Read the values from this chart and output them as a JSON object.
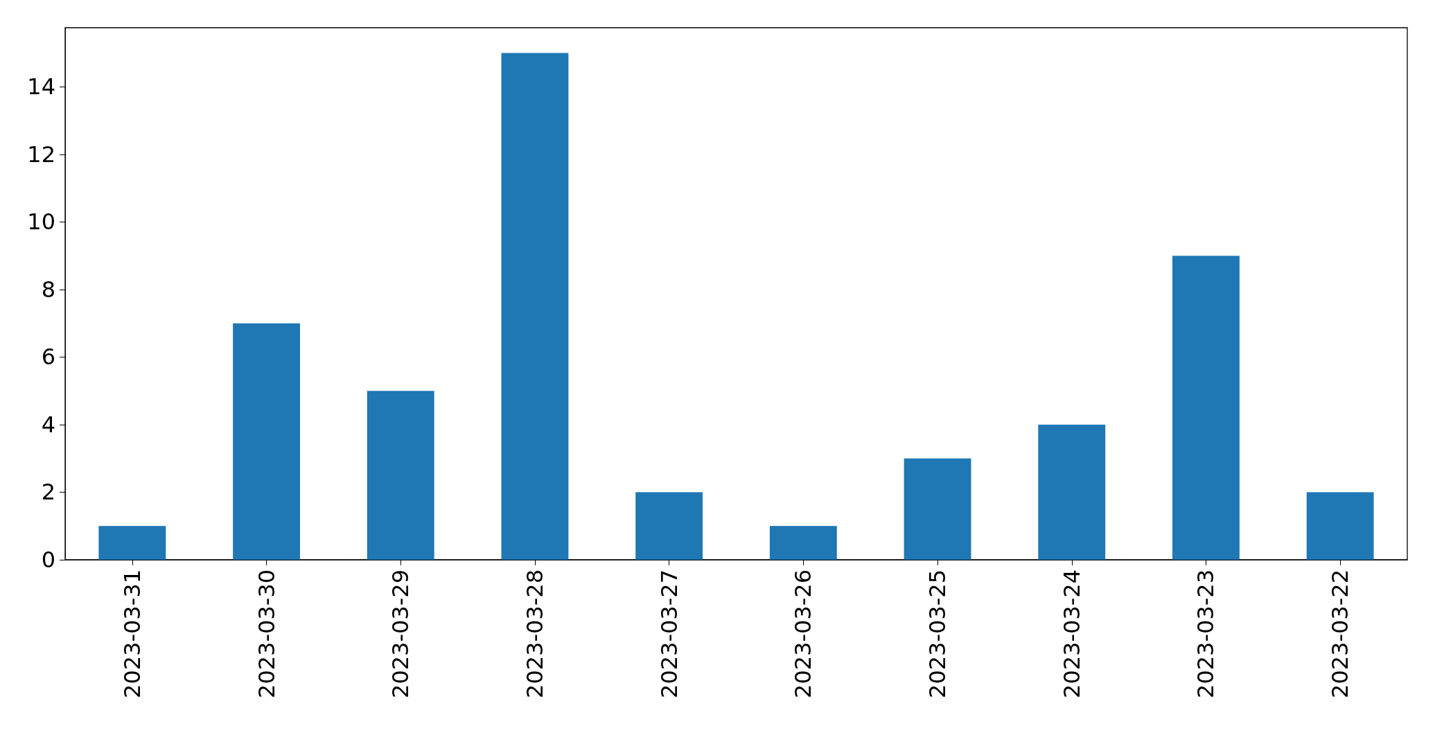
{
  "chart_data": {
    "type": "bar",
    "categories": [
      "2023-03-31",
      "2023-03-30",
      "2023-03-29",
      "2023-03-28",
      "2023-03-27",
      "2023-03-26",
      "2023-03-25",
      "2023-03-24",
      "2023-03-23",
      "2023-03-22"
    ],
    "values": [
      1,
      7,
      5,
      15,
      2,
      1,
      3,
      4,
      9,
      2
    ],
    "color": "#1f77b4",
    "ylim": [
      0,
      15.75
    ],
    "yticks": [
      0,
      2,
      4,
      6,
      8,
      10,
      12,
      14
    ],
    "grid": false
  }
}
